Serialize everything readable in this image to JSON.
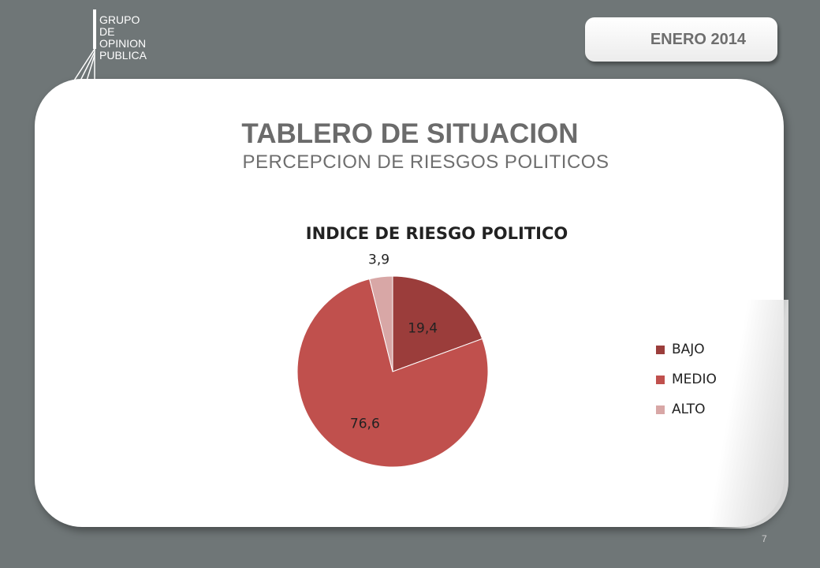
{
  "header": {
    "logo_lines": [
      "GRUPO",
      "DE",
      "OPINION",
      "PUBLICA"
    ],
    "date_badge": "ENERO 2014"
  },
  "slide": {
    "title": "TABLERO DE SITUACION",
    "subtitle": "PERCEPCION DE RIESGOS POLITICOS",
    "page_number": "7"
  },
  "chart_data": {
    "type": "pie",
    "title": "INDICE DE RIESGO POLITICO",
    "categories": [
      "BAJO",
      "MEDIO",
      "ALTO"
    ],
    "values": [
      19.4,
      76.6,
      3.9
    ],
    "labels": [
      "19,4",
      "76,6",
      "3,9"
    ],
    "colors": [
      "#9b3d3b",
      "#c0504d",
      "#d8a7a6"
    ],
    "legend_position": "right"
  }
}
